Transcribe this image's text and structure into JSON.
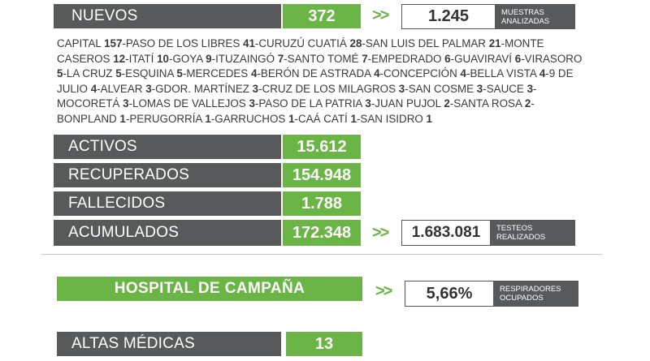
{
  "nuevos": {
    "label": "NUEVOS",
    "value": "372"
  },
  "muestras": {
    "value": "1.245",
    "caption_line1": "MUESTRAS",
    "caption_line2": "ANALIZADAS"
  },
  "chevron": ">>",
  "localidades": [
    {
      "name": "CAPITAL",
      "count": "157"
    },
    {
      "name": "PASO DE LOS LIBRES",
      "count": "41"
    },
    {
      "name": "CURUZÚ CUATIÁ",
      "count": "28"
    },
    {
      "name": "SAN LUIS DEL PALMAR",
      "count": "21"
    },
    {
      "name": "MONTE CASEROS",
      "count": "12"
    },
    {
      "name": "ITATÍ",
      "count": "10"
    },
    {
      "name": "GOYA",
      "count": "9"
    },
    {
      "name": "ITUZAINGÓ",
      "count": "7"
    },
    {
      "name": "SANTO TOMÉ",
      "count": "7"
    },
    {
      "name": "EMPEDRADO",
      "count": "6"
    },
    {
      "name": "GUAVIRAVÍ",
      "count": "6"
    },
    {
      "name": "VIRASORO",
      "count": "5"
    },
    {
      "name": "LA CRUZ",
      "count": "5"
    },
    {
      "name": "ESQUINA",
      "count": "5"
    },
    {
      "name": "MERCEDES",
      "count": "4"
    },
    {
      "name": "BERÓN DE ASTRADA",
      "count": "4"
    },
    {
      "name": "CONCEPCIÓN",
      "count": "4"
    },
    {
      "name": "BELLA VISTA",
      "count": "4"
    },
    {
      "name": "9 DE JULIO",
      "count": "4"
    },
    {
      "name": "ALVEAR",
      "count": "3"
    },
    {
      "name": "GDOR. MARTÍNEZ",
      "count": "3"
    },
    {
      "name": "CRUZ DE LOS MILAGROS",
      "count": "3"
    },
    {
      "name": "SAN COSME",
      "count": "3"
    },
    {
      "name": "SAUCE",
      "count": "3"
    },
    {
      "name": "MOCORETÁ",
      "count": "3"
    },
    {
      "name": "LOMAS DE VALLEJOS",
      "count": "3"
    },
    {
      "name": "PASO DE LA PATRIA",
      "count": "3"
    },
    {
      "name": "JUAN PUJOL",
      "count": "2"
    },
    {
      "name": "SANTA ROSA",
      "count": "2"
    },
    {
      "name": "BONPLAND",
      "count": "1"
    },
    {
      "name": "PERUGORRÍA",
      "count": "1"
    },
    {
      "name": "GARRUCHOS",
      "count": "1"
    },
    {
      "name": "CAÁ CATÍ",
      "count": "1"
    },
    {
      "name": "SAN ISIDRO",
      "count": "1"
    }
  ],
  "activos": {
    "label": "ACTIVOS",
    "value": "15.612"
  },
  "recuperados": {
    "label": "RECUPERADOS",
    "value": "154.948"
  },
  "fallecidos": {
    "label": "FALLECIDOS",
    "value": "1.788"
  },
  "acumulados": {
    "label": "ACUMULADOS",
    "value": "172.348"
  },
  "testeos": {
    "value": "1.683.081",
    "caption_line1": "TESTEOS",
    "caption_line2": "REALIZADOS"
  },
  "hospital": {
    "title": "HOSPITAL DE CAMPAÑA"
  },
  "respiradores": {
    "value": "5,66%",
    "caption_line1": "RESPIRADORES",
    "caption_line2": "OCUPADOS"
  },
  "altas": {
    "label": "ALTAS MÉDICAS",
    "value": "13"
  },
  "colors": {
    "green": "#6ab545",
    "gray": "#58595b",
    "text": "#3a3a3a"
  }
}
